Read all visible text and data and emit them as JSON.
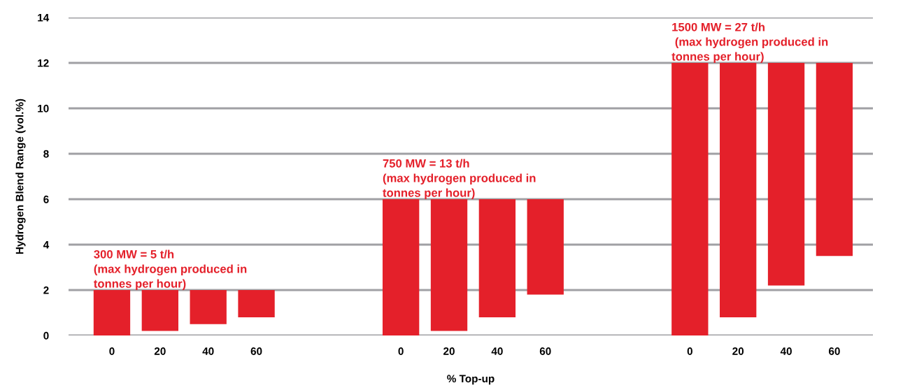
{
  "chart_data": {
    "type": "bar",
    "xlabel": "% Top-up",
    "ylabel": "Hydrogen Blend Range (vol.%)",
    "categories": [
      "0",
      "20",
      "40",
      "60",
      null,
      null,
      "0",
      "20",
      "40",
      "60",
      null,
      null,
      "0",
      "20",
      "40",
      "60"
    ],
    "base": [
      0,
      0.2,
      0.5,
      0.8,
      null,
      null,
      0,
      0.2,
      0.8,
      1.8,
      null,
      null,
      0,
      0.8,
      2.2,
      3.5
    ],
    "values": [
      2,
      1.8,
      1.5,
      1.2,
      null,
      null,
      6,
      5.8,
      5.2,
      4.2,
      null,
      null,
      12,
      11.2,
      9.8,
      8.5
    ],
    "color": "#e4202a",
    "ylim": [
      0,
      14
    ],
    "yticks": [
      0,
      2,
      4,
      6,
      8,
      10,
      12,
      14
    ],
    "grid": "y",
    "annotations": [
      "300 MW = 5 t/h\n(max hydrogen produced in\ntonnes per hour)",
      "750 MW = 13 t/h\n(max hydrogen produced in\ntonnes per hour)",
      "1500 MW = 27 t/h\n (max hydrogen produced in\ntonnes per hour)"
    ]
  }
}
